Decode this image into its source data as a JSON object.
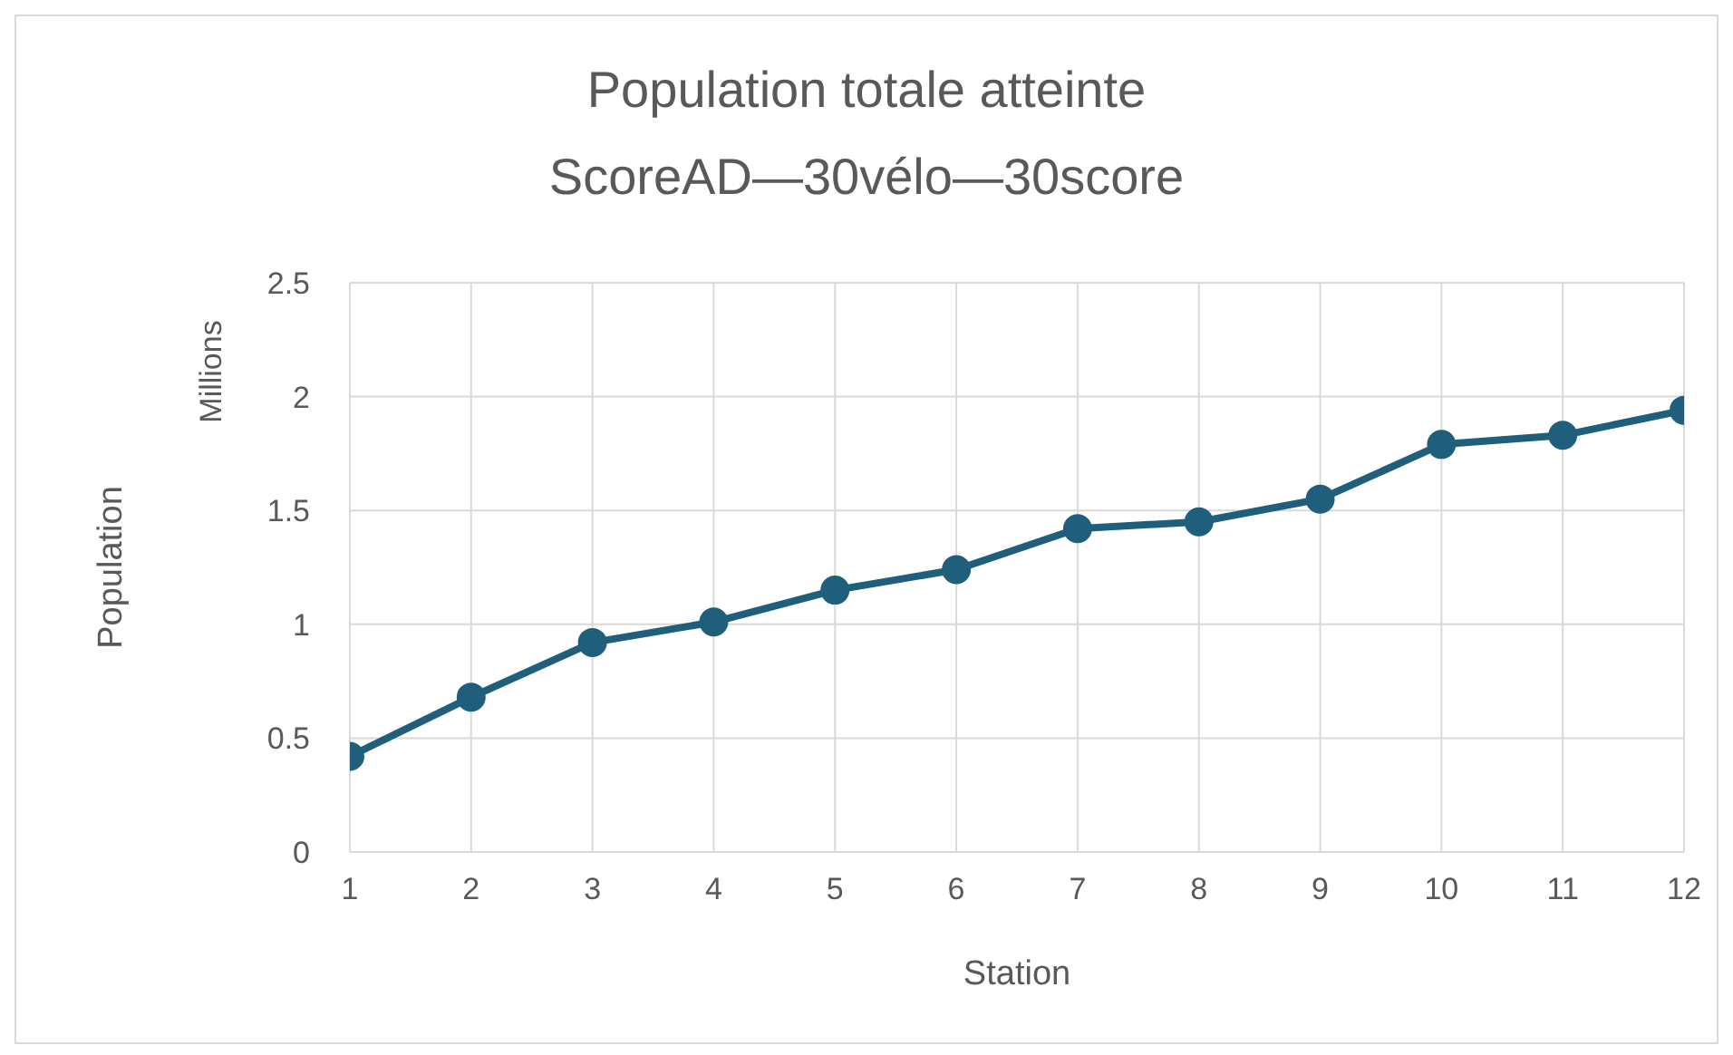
{
  "chart_data": {
    "type": "line",
    "title": "Population totale atteinte",
    "subtitle": "ScoreAD—30vélo—30score",
    "xlabel": "Station",
    "ylabel": "Population",
    "annotations": [
      "Millions"
    ],
    "x": [
      1,
      2,
      3,
      4,
      5,
      6,
      7,
      8,
      9,
      10,
      11,
      12
    ],
    "series": [
      {
        "color": "#1f5f7c",
        "values": [
          0.42,
          0.68,
          0.92,
          1.01,
          1.15,
          1.24,
          1.42,
          1.45,
          1.55,
          1.79,
          1.83,
          1.94
        ]
      }
    ],
    "xlim": [
      1,
      12
    ],
    "xticks": [
      1,
      2,
      3,
      4,
      5,
      6,
      7,
      8,
      9,
      10,
      11,
      12
    ],
    "ylim": [
      0,
      2.5
    ],
    "yticks": [
      0,
      0.5,
      1,
      1.5,
      2,
      2.5
    ],
    "grid": true,
    "marker": "circle",
    "line_style": "solid",
    "legend": false
  }
}
